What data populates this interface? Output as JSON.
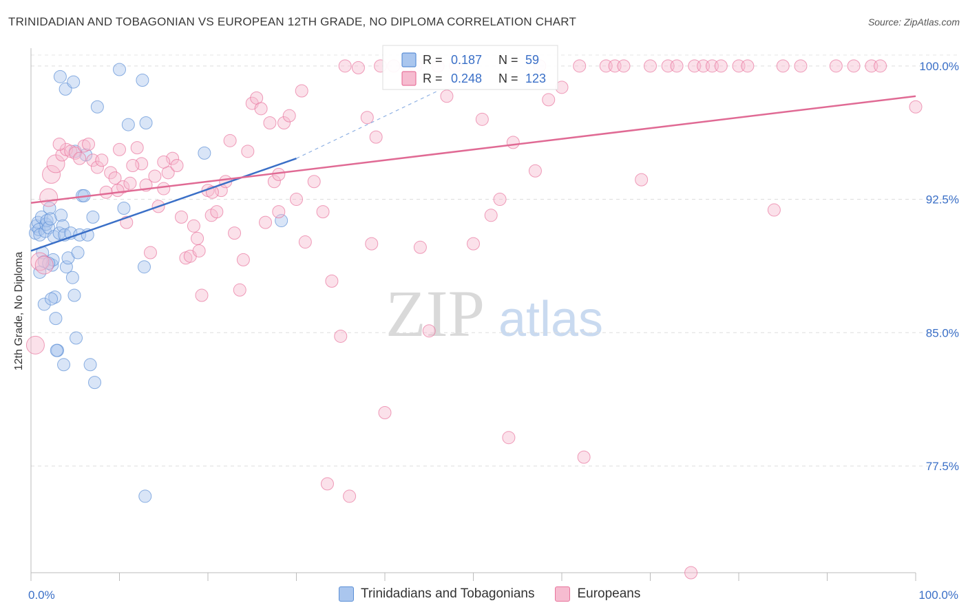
{
  "title": "TRINIDADIAN AND TOBAGONIAN VS EUROPEAN 12TH GRADE, NO DIPLOMA CORRELATION CHART",
  "source": "Source: ZipAtlas.com",
  "watermark": {
    "zip": "ZIP",
    "atlas": "atlas"
  },
  "colors": {
    "blue": "#5b8fd6",
    "blue_fill": "#aac6ee",
    "pink": "#e8749c",
    "pink_fill": "#f6bcd0",
    "accent_text": "#3a6fc7"
  },
  "chart_data": {
    "type": "scatter",
    "ylabel": "12th Grade, No Diploma",
    "xlabel": "",
    "xlim": [
      0,
      100
    ],
    "ylim": [
      71.5,
      101.0
    ],
    "x_tick_labels": [
      {
        "value": 0,
        "label": "0.0%"
      },
      {
        "value": 100,
        "label": "100.0%"
      }
    ],
    "y_ticks": [
      {
        "value": 100,
        "label": "100.0%"
      },
      {
        "value": 92.5,
        "label": "92.5%"
      },
      {
        "value": 85,
        "label": "85.0%"
      },
      {
        "value": 77.5,
        "label": "77.5%"
      }
    ],
    "legend_stats": [
      {
        "series": "Trinidadians and Tobagonians",
        "r_label": "R = ",
        "r": "0.187",
        "n_label": "N = ",
        "n": "59"
      },
      {
        "series": "Europeans",
        "r_label": "R = ",
        "r": "0.248",
        "n_label": "N = ",
        "n": "123"
      }
    ],
    "series": [
      {
        "name": "Trinidadians and Tobagonians",
        "color": "#5b8fd6",
        "trend": {
          "x": [
            0,
            30
          ],
          "y": [
            89.6,
            94.8
          ],
          "dashed_to": [
            46,
            98.6
          ]
        },
        "points": [
          [
            0.5,
            90.6
          ],
          [
            0.6,
            91.0
          ],
          [
            0.8,
            91.2
          ],
          [
            0.9,
            90.8
          ],
          [
            1.0,
            90.5
          ],
          [
            1.2,
            91.5
          ],
          [
            1.3,
            89.5
          ],
          [
            1.5,
            89.0
          ],
          [
            1.6,
            90.7
          ],
          [
            1.7,
            91.1
          ],
          [
            1.8,
            91.3
          ],
          [
            2.0,
            90.9
          ],
          [
            2.1,
            92.0
          ],
          [
            2.2,
            91.4
          ],
          [
            2.4,
            88.8
          ],
          [
            2.5,
            89.1
          ],
          [
            2.6,
            90.4
          ],
          [
            2.7,
            87.0
          ],
          [
            2.8,
            85.8
          ],
          [
            3.0,
            84.0
          ],
          [
            3.2,
            90.6
          ],
          [
            3.4,
            91.6
          ],
          [
            3.6,
            91.0
          ],
          [
            3.8,
            90.5
          ],
          [
            4.0,
            88.7
          ],
          [
            4.2,
            89.2
          ],
          [
            4.5,
            90.6
          ],
          [
            4.7,
            88.1
          ],
          [
            4.9,
            87.1
          ],
          [
            5.1,
            84.7
          ],
          [
            5.3,
            89.5
          ],
          [
            5.5,
            90.5
          ],
          [
            5.8,
            92.7
          ],
          [
            6.0,
            92.7
          ],
          [
            6.2,
            95.0
          ],
          [
            6.4,
            90.5
          ],
          [
            6.7,
            83.2
          ],
          [
            7.0,
            91.5
          ],
          [
            7.2,
            82.2
          ],
          [
            7.5,
            97.7
          ],
          [
            3.3,
            99.4
          ],
          [
            3.9,
            98.7
          ],
          [
            4.8,
            99.1
          ],
          [
            10.0,
            99.8
          ],
          [
            10.5,
            92.0
          ],
          [
            11.0,
            96.7
          ],
          [
            12.6,
            99.2
          ],
          [
            13.0,
            96.8
          ],
          [
            12.8,
            88.7
          ],
          [
            12.9,
            75.8
          ],
          [
            19.6,
            95.1
          ],
          [
            28.3,
            91.3
          ],
          [
            1.5,
            86.6
          ],
          [
            2.3,
            86.9
          ],
          [
            2.9,
            84.0
          ],
          [
            3.7,
            83.2
          ],
          [
            1.0,
            88.4
          ],
          [
            2.0,
            88.9
          ],
          [
            5.0,
            95.2
          ]
        ]
      },
      {
        "name": "Europeans",
        "color": "#e8749c",
        "trend": {
          "x": [
            0,
            100
          ],
          "y": [
            92.3,
            98.3
          ]
        },
        "points": [
          [
            0.5,
            84.3
          ],
          [
            1.0,
            89.0
          ],
          [
            1.5,
            88.8
          ],
          [
            2.0,
            92.6
          ],
          [
            2.3,
            93.9
          ],
          [
            2.8,
            94.5
          ],
          [
            3.5,
            95.0
          ],
          [
            4.0,
            95.3
          ],
          [
            4.5,
            95.2
          ],
          [
            5.0,
            95.1
          ],
          [
            5.5,
            94.8
          ],
          [
            6.0,
            95.5
          ],
          [
            6.5,
            95.6
          ],
          [
            7.0,
            94.7
          ],
          [
            7.5,
            94.3
          ],
          [
            8.0,
            94.7
          ],
          [
            8.5,
            92.9
          ],
          [
            9.0,
            94.0
          ],
          [
            9.5,
            93.7
          ],
          [
            10.0,
            95.3
          ],
          [
            10.4,
            93.2
          ],
          [
            10.8,
            91.2
          ],
          [
            11.2,
            93.4
          ],
          [
            12.0,
            95.4
          ],
          [
            12.5,
            94.5
          ],
          [
            13.0,
            93.3
          ],
          [
            13.5,
            89.5
          ],
          [
            14.0,
            93.8
          ],
          [
            14.4,
            92.1
          ],
          [
            15.0,
            93.1
          ],
          [
            15.5,
            94.0
          ],
          [
            16.0,
            94.8
          ],
          [
            16.5,
            94.4
          ],
          [
            17.0,
            91.5
          ],
          [
            17.5,
            89.2
          ],
          [
            18.0,
            89.3
          ],
          [
            18.4,
            91.0
          ],
          [
            18.8,
            90.3
          ],
          [
            19.3,
            87.1
          ],
          [
            20.0,
            93.0
          ],
          [
            20.4,
            91.6
          ],
          [
            21.0,
            91.8
          ],
          [
            21.5,
            93.0
          ],
          [
            22.0,
            93.5
          ],
          [
            22.5,
            95.8
          ],
          [
            23.0,
            90.6
          ],
          [
            23.6,
            87.4
          ],
          [
            24.0,
            89.1
          ],
          [
            24.5,
            95.2
          ],
          [
            25.0,
            97.9
          ],
          [
            25.5,
            98.2
          ],
          [
            26.0,
            97.6
          ],
          [
            27.0,
            96.8
          ],
          [
            27.5,
            93.5
          ],
          [
            28.0,
            91.8
          ],
          [
            28.6,
            96.8
          ],
          [
            29.2,
            97.2
          ],
          [
            30.0,
            92.5
          ],
          [
            31.0,
            90.1
          ],
          [
            32.0,
            93.5
          ],
          [
            33.0,
            91.8
          ],
          [
            34.0,
            87.9
          ],
          [
            35.0,
            84.8
          ],
          [
            36.0,
            75.8
          ],
          [
            37.0,
            99.9
          ],
          [
            38.0,
            97.1
          ],
          [
            38.5,
            90.0
          ],
          [
            39.0,
            96.0
          ],
          [
            40.0,
            80.5
          ],
          [
            41.0,
            100.0
          ],
          [
            42.5,
            100.0
          ],
          [
            44.0,
            89.8
          ],
          [
            45.0,
            85.1
          ],
          [
            46.0,
            100.0
          ],
          [
            47.0,
            98.3
          ],
          [
            48.0,
            100.0
          ],
          [
            50.0,
            90.0
          ],
          [
            51.0,
            97.0
          ],
          [
            52.0,
            91.6
          ],
          [
            53.0,
            92.5
          ],
          [
            54.0,
            79.1
          ],
          [
            54.5,
            95.7
          ],
          [
            57.0,
            94.1
          ],
          [
            57.5,
            100.0
          ],
          [
            58.5,
            98.1
          ],
          [
            60.0,
            98.8
          ],
          [
            62.0,
            100.0
          ],
          [
            62.5,
            78.0
          ],
          [
            65.0,
            100.0
          ],
          [
            66.0,
            100.0
          ],
          [
            67.0,
            100.0
          ],
          [
            69.0,
            93.6
          ],
          [
            70.0,
            100.0
          ],
          [
            72.0,
            100.0
          ],
          [
            73.0,
            100.0
          ],
          [
            75.0,
            100.0
          ],
          [
            76.0,
            100.0
          ],
          [
            77.0,
            100.0
          ],
          [
            78.0,
            100.0
          ],
          [
            80.0,
            100.0
          ],
          [
            81.0,
            100.0
          ],
          [
            84.0,
            91.9
          ],
          [
            85.0,
            100.0
          ],
          [
            87.0,
            100.0
          ],
          [
            91.0,
            100.0
          ],
          [
            93.0,
            100.0
          ],
          [
            95.0,
            100.0
          ],
          [
            96.0,
            100.0
          ],
          [
            100.0,
            97.7
          ],
          [
            74.6,
            71.5
          ],
          [
            30.6,
            98.6
          ],
          [
            35.5,
            100.0
          ],
          [
            39.5,
            100.0
          ],
          [
            20.5,
            92.9
          ],
          [
            19.0,
            89.6
          ],
          [
            26.5,
            91.2
          ],
          [
            33.5,
            76.5
          ],
          [
            43.5,
            100.0
          ],
          [
            28.0,
            93.9
          ],
          [
            9.8,
            93.0
          ],
          [
            11.5,
            94.4
          ],
          [
            15.0,
            94.6
          ],
          [
            3.2,
            95.6
          ]
        ]
      }
    ]
  }
}
